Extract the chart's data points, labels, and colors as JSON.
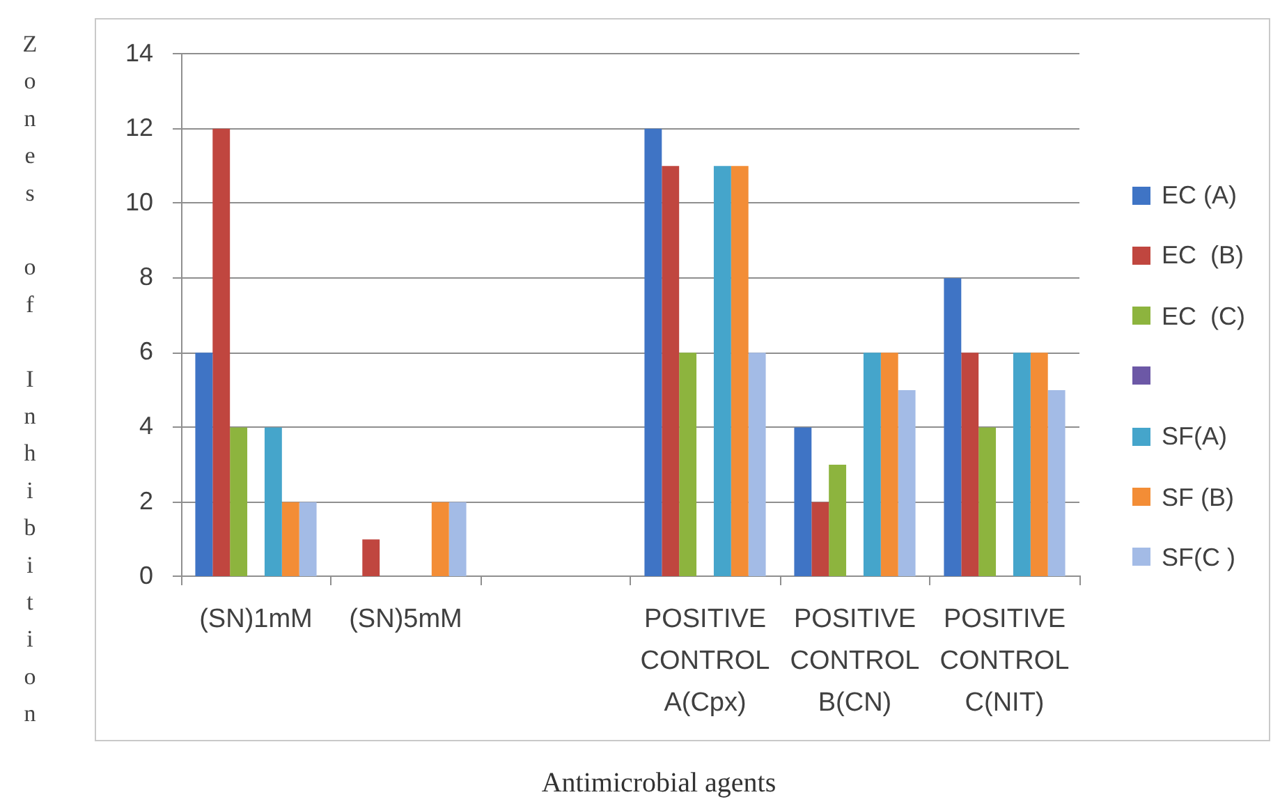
{
  "chart_data": {
    "type": "bar",
    "xlabel": "Antimicrobial agents",
    "ylabel": "Zones of Inhibition",
    "categories": [
      "(SN)1mM",
      "(SN)5mM",
      null,
      "POSITIVE CONTROL A(Cpx)",
      "POSITIVE CONTROL B(CN)",
      "POSITIVE CONTROL C(NIT)"
    ],
    "series": [
      {
        "name": "EC (A)",
        "color": "#3f74c5",
        "values": [
          6,
          null,
          null,
          12,
          4,
          8
        ]
      },
      {
        "name": "EC  (B)",
        "color": "#c0463f",
        "values": [
          12,
          1,
          null,
          11,
          2,
          6
        ]
      },
      {
        "name": "EC  (C)",
        "color": "#8db43e",
        "values": [
          4,
          null,
          null,
          6,
          3,
          4
        ]
      },
      {
        "color": "#6c58a6",
        "values": [
          null,
          null,
          null,
          null,
          null,
          null
        ]
      },
      {
        "name": "SF(A)",
        "color": "#45a5cb",
        "values": [
          4,
          null,
          null,
          11,
          6,
          6
        ]
      },
      {
        "name": "SF (B)",
        "color": "#f38d36",
        "values": [
          2,
          2,
          null,
          11,
          6,
          6
        ]
      },
      {
        "name": "SF(C )",
        "color": "#a3bbe6",
        "values": [
          2,
          2,
          null,
          6,
          5,
          5
        ]
      }
    ],
    "ylim": [
      0,
      14
    ],
    "yticks": [
      0,
      2,
      4,
      6,
      8,
      10,
      12,
      14
    ],
    "grid": "y",
    "legend": "right"
  }
}
